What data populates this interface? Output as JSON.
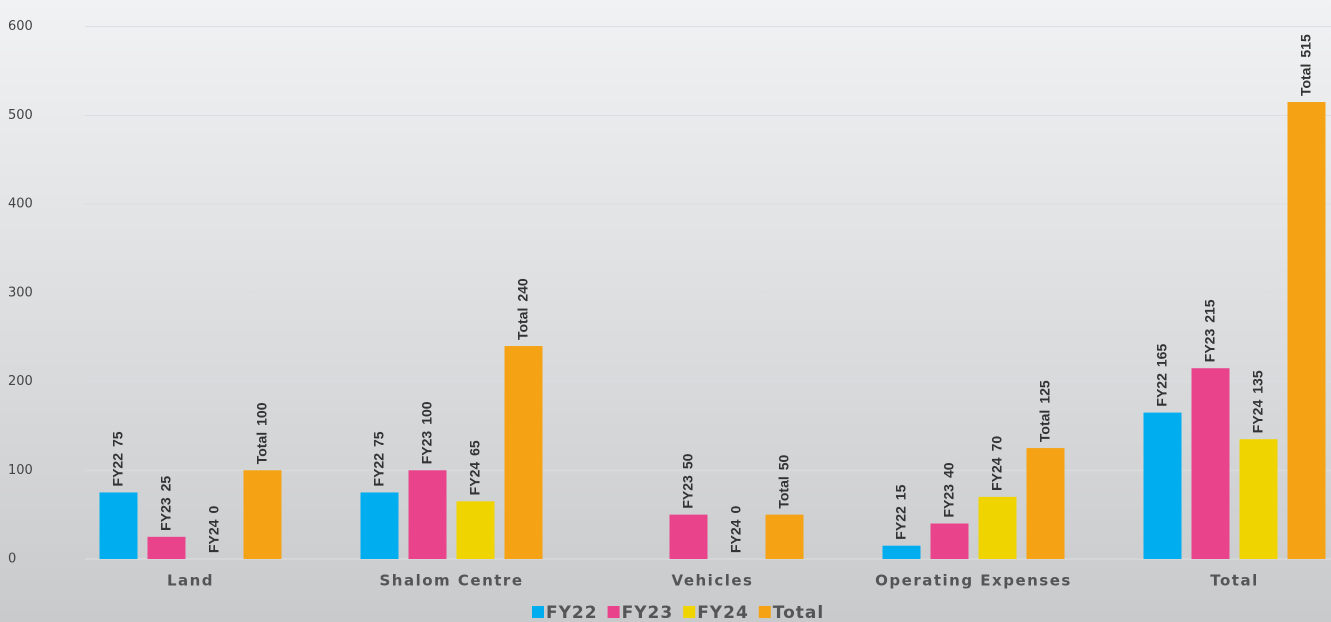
{
  "chart_data": {
    "type": "bar",
    "categories": [
      "Land",
      "Shalom Centre",
      "Vehicles",
      "Operating Expenses",
      "Total"
    ],
    "series": [
      {
        "name": "FY22",
        "color": "#00aeef",
        "values": [
          75,
          75,
          null,
          15,
          165
        ]
      },
      {
        "name": "FY23",
        "color": "#e8438b",
        "values": [
          25,
          100,
          50,
          40,
          215
        ]
      },
      {
        "name": "FY24",
        "color": "#f0d400",
        "values": [
          0,
          65,
          0,
          70,
          135
        ]
      },
      {
        "name": "Total",
        "color": "#f5a214",
        "values": [
          100,
          240,
          50,
          125,
          515
        ]
      }
    ],
    "ylim": [
      0,
      630
    ],
    "yticks": [
      0,
      100,
      200,
      300,
      400,
      500,
      600
    ],
    "grid": true,
    "legend": "bottom"
  }
}
